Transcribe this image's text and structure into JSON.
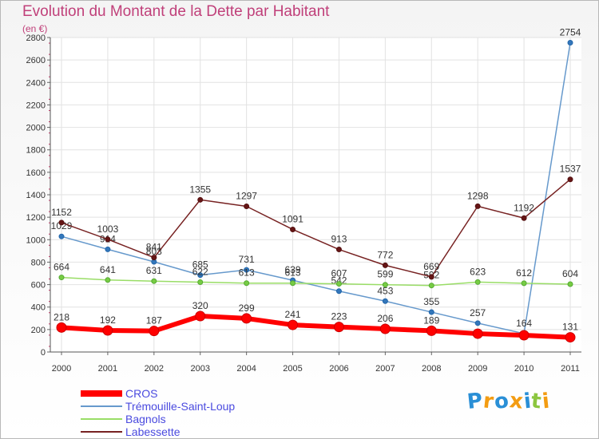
{
  "chart_data": {
    "type": "line",
    "title": "Evolution du Montant de la Dette par Habitant",
    "subtitle": "(en €)",
    "categories": [
      "2000",
      "2001",
      "2002",
      "2003",
      "2004",
      "2005",
      "2006",
      "2007",
      "2008",
      "2009",
      "2010",
      "2011"
    ],
    "ylim": [
      0,
      2800
    ],
    "yticks": [
      0,
      200,
      400,
      600,
      800,
      1000,
      1200,
      1400,
      1600,
      1800,
      2000,
      2200,
      2400,
      2600,
      2800
    ],
    "grid": true,
    "legend_position": "bottom-left",
    "series": [
      {
        "name": "CROS",
        "color": "#ff0000",
        "values": [
          218,
          192,
          187,
          320,
          299,
          241,
          223,
          206,
          189,
          163,
          149,
          131
        ],
        "data_labels": [
          "218",
          "192",
          "187",
          "320",
          "299",
          "241",
          "223",
          "206",
          "189",
          "",
          "",
          "131"
        ]
      },
      {
        "name": "Trémouille-Saint-Loup",
        "color": "#6699cc",
        "values": [
          1029,
          914,
          803,
          685,
          731,
          639,
          542,
          453,
          355,
          257,
          164,
          2754
        ],
        "data_labels": [
          "1029",
          "914",
          "803",
          "685",
          "731",
          "639",
          "542",
          "453",
          "355",
          "257",
          "164",
          "2754"
        ]
      },
      {
        "name": "Bagnols",
        "color": "#99dd66",
        "values": [
          664,
          641,
          631,
          622,
          613,
          613,
          607,
          599,
          592,
          623,
          612,
          604
        ],
        "data_labels": [
          "664",
          "641",
          "631",
          "622",
          "613",
          "613",
          "607",
          "599",
          "592",
          "623",
          "612",
          "604"
        ]
      },
      {
        "name": "Labessette",
        "color": "#772222",
        "values": [
          1152,
          1003,
          841,
          1355,
          1297,
          1091,
          913,
          772,
          669,
          1298,
          1192,
          1537
        ],
        "data_labels": [
          "1152",
          "1003",
          "841",
          "1355",
          "1297",
          "1091",
          "913",
          "772",
          "669",
          "1298",
          "1192",
          "1537"
        ]
      }
    ]
  },
  "logo": {
    "letters": [
      "P",
      "r",
      "o",
      "x",
      "i",
      "t",
      "i"
    ],
    "colors": [
      "#2a8fd6",
      "#f39c12",
      "#2a8fd6",
      "#f39c12",
      "#2a8fd6",
      "#8cc63f",
      "#f39c12"
    ]
  }
}
